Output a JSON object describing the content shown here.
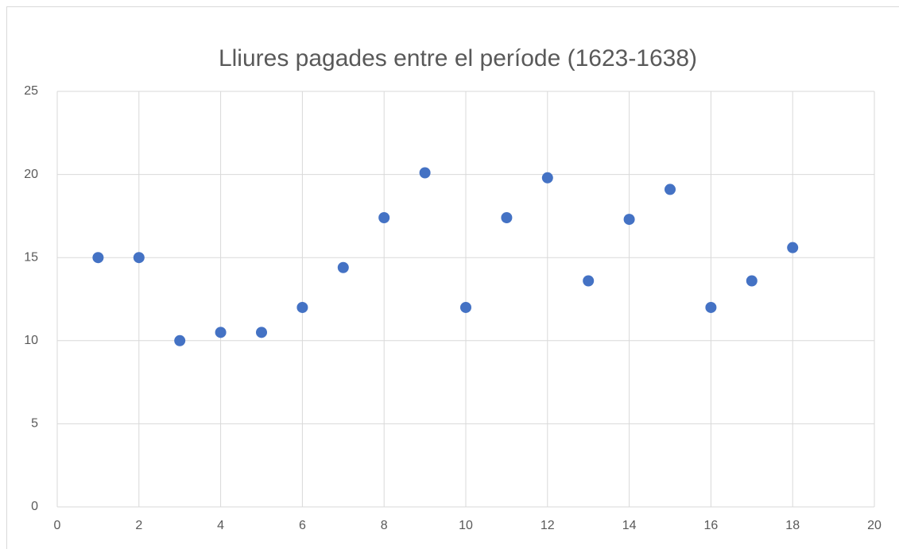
{
  "chart_data": {
    "type": "scatter",
    "title": "Lliures pagades entre el període (1623-1638)",
    "x": [
      1,
      2,
      3,
      4,
      5,
      6,
      7,
      8,
      9,
      10,
      11,
      12,
      13,
      14,
      15,
      16,
      17,
      18
    ],
    "values": [
      15,
      15,
      10,
      10.5,
      10.5,
      12,
      14.4,
      17.4,
      20.1,
      12,
      17.4,
      19.8,
      13.6,
      17.3,
      19.1,
      12,
      13.6,
      15.6
    ],
    "color": "#4472c4",
    "xlim": [
      0,
      20
    ],
    "xticks": [
      0,
      2,
      4,
      6,
      8,
      10,
      12,
      14,
      16,
      18,
      20
    ],
    "ylim": [
      0,
      25
    ],
    "yticks": [
      0,
      5,
      10,
      15,
      20,
      25
    ],
    "grid": true
  }
}
